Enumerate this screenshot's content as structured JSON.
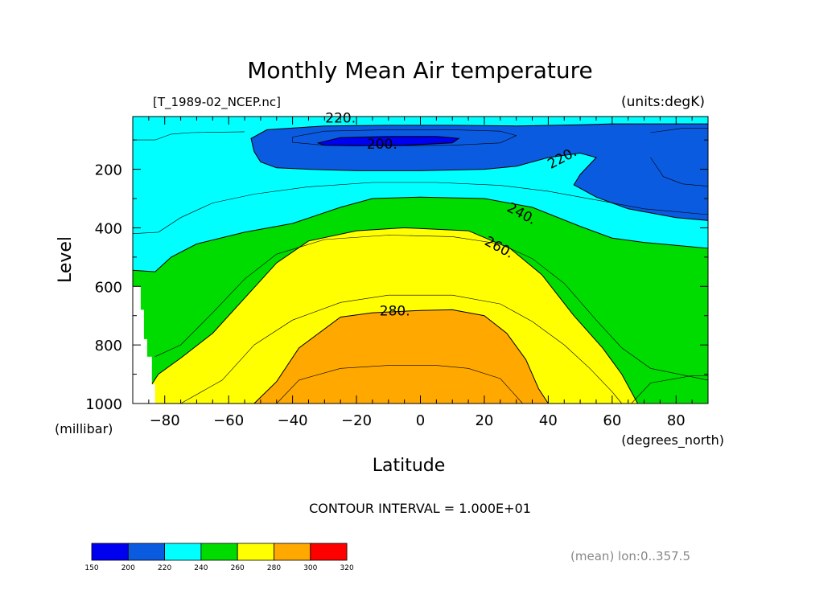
{
  "chart_data": {
    "type": "heatmap",
    "title": "Monthly Mean Air temperature",
    "file_label": "[T_1989-02_NCEP.nc]",
    "units_label": "(units:degK)",
    "xlabel": "Latitude",
    "x_units": "(degrees_north)",
    "ylabel": "Level",
    "y_units": "(millibar)",
    "xlim": [
      -90,
      90
    ],
    "ylim": [
      1000,
      20
    ],
    "y_reversed": true,
    "x_ticks": [
      {
        "value": -80,
        "label": "−80"
      },
      {
        "value": -60,
        "label": "−60"
      },
      {
        "value": -40,
        "label": "−40"
      },
      {
        "value": -20,
        "label": "−20"
      },
      {
        "value": 0,
        "label": "0"
      },
      {
        "value": 20,
        "label": "20"
      },
      {
        "value": 40,
        "label": "40"
      },
      {
        "value": 60,
        "label": "60"
      },
      {
        "value": 80,
        "label": "80"
      }
    ],
    "y_ticks": [
      {
        "value": 200,
        "label": "200"
      },
      {
        "value": 400,
        "label": "400"
      },
      {
        "value": 600,
        "label": "600"
      },
      {
        "value": 800,
        "label": "800"
      },
      {
        "value": 1000,
        "label": "1000"
      }
    ],
    "contour_interval_text": "CONTOUR INTERVAL = 1.000E+01",
    "footnote": "(mean) lon:0..357.5",
    "contour_labels": [
      {
        "text": "220.",
        "lat": -25,
        "level": 40
      },
      {
        "text": "200.",
        "lat": -12,
        "level": 130
      },
      {
        "text": "220.",
        "lat": 45,
        "level": 175
      },
      {
        "text": "240.",
        "lat": 31,
        "level": 365
      },
      {
        "text": "260.",
        "lat": 24,
        "level": 480
      },
      {
        "text": "280.",
        "lat": -8,
        "level": 700
      }
    ],
    "bands": [
      {
        "range": [
          150,
          200
        ],
        "color": "#0000f0"
      },
      {
        "range": [
          200,
          220
        ],
        "color": "#0b5be0"
      },
      {
        "range": [
          220,
          240
        ],
        "color": "#00ffff"
      },
      {
        "range": [
          240,
          260
        ],
        "color": "#00dc00"
      },
      {
        "range": [
          260,
          280
        ],
        "color": "#ffff00"
      },
      {
        "range": [
          280,
          300
        ],
        "color": "#ffa800"
      },
      {
        "range": [
          300,
          320
        ],
        "color": "#ff0000"
      }
    ],
    "colorbar_labels": [
      "150",
      "200",
      "220",
      "240",
      "260",
      "280",
      "300",
      "320"
    ],
    "regions": [
      {
        "band": "220-240",
        "outline": "full"
      },
      {
        "band": "240-260",
        "outline": [
          [
            -90,
            545
          ],
          [
            -83,
            550
          ],
          [
            -78,
            500
          ],
          [
            -70,
            455
          ],
          [
            -55,
            415
          ],
          [
            -40,
            385
          ],
          [
            -25,
            330
          ],
          [
            -15,
            300
          ],
          [
            0,
            295
          ],
          [
            20,
            300
          ],
          [
            35,
            330
          ],
          [
            50,
            395
          ],
          [
            60,
            435
          ],
          [
            70,
            450
          ],
          [
            80,
            460
          ],
          [
            90,
            470
          ],
          [
            90,
            1000
          ],
          [
            -90,
            1000
          ]
        ]
      },
      {
        "band": "260-280",
        "outline": [
          [
            -90,
            1000
          ],
          [
            -88,
            1000
          ],
          [
            -85,
            950
          ],
          [
            -82,
            900
          ],
          [
            -75,
            845
          ],
          [
            -65,
            760
          ],
          [
            -55,
            640
          ],
          [
            -45,
            520
          ],
          [
            -35,
            445
          ],
          [
            -20,
            410
          ],
          [
            -5,
            400
          ],
          [
            15,
            410
          ],
          [
            28,
            470
          ],
          [
            38,
            560
          ],
          [
            48,
            700
          ],
          [
            57,
            810
          ],
          [
            63,
            900
          ],
          [
            68,
            1000
          ]
        ]
      },
      {
        "band": "280-300",
        "outline": [
          [
            -52,
            1000
          ],
          [
            -45,
            925
          ],
          [
            -38,
            810
          ],
          [
            -25,
            705
          ],
          [
            -15,
            690
          ],
          [
            0,
            682
          ],
          [
            10,
            680
          ],
          [
            20,
            700
          ],
          [
            27,
            760
          ],
          [
            33,
            850
          ],
          [
            37,
            950
          ],
          [
            40,
            1000
          ]
        ]
      },
      {
        "band": "200-220",
        "outline": [
          [
            -52,
            140
          ],
          [
            -53,
            95
          ],
          [
            -48,
            65
          ],
          [
            -30,
            52
          ],
          [
            -10,
            50
          ],
          [
            10,
            50
          ],
          [
            30,
            52
          ],
          [
            50,
            48
          ],
          [
            60,
            45
          ],
          [
            75,
            45
          ],
          [
            90,
            45
          ],
          [
            90,
            375
          ],
          [
            80,
            365
          ],
          [
            65,
            335
          ],
          [
            55,
            295
          ],
          [
            48,
            253
          ],
          [
            50,
            218
          ],
          [
            55,
            160
          ],
          [
            50,
            145
          ],
          [
            40,
            160
          ],
          [
            30,
            190
          ],
          [
            20,
            200
          ],
          [
            0,
            205
          ],
          [
            -20,
            205
          ],
          [
            -35,
            200
          ],
          [
            -45,
            195
          ],
          [
            -50,
            175
          ]
        ]
      },
      {
        "band": "150-200",
        "outline": [
          [
            -32,
            110
          ],
          [
            -25,
            92
          ],
          [
            -10,
            88
          ],
          [
            5,
            88
          ],
          [
            12,
            95
          ],
          [
            10,
            110
          ],
          [
            -5,
            118
          ],
          [
            -20,
            120
          ],
          [
            -30,
            118
          ]
        ]
      },
      {
        "band": "missing",
        "outline": [
          [
            -90,
            600
          ],
          [
            -87.5,
            600
          ],
          [
            -87.5,
            680
          ],
          [
            -86.5,
            680
          ],
          [
            -86.5,
            780
          ],
          [
            -85.5,
            780
          ],
          [
            -85.5,
            840
          ],
          [
            -84,
            840
          ],
          [
            -84,
            935
          ],
          [
            -83,
            935
          ],
          [
            -83,
            1000
          ],
          [
            -90,
            1000
          ]
        ]
      }
    ],
    "contour_lines": [
      [
        [
          -90,
          100
        ],
        [
          -83,
          100
        ],
        [
          -78,
          80
        ],
        [
          -72,
          75
        ],
        [
          -55,
          72
        ]
      ],
      [
        [
          -90,
          420
        ],
        [
          -82,
          415
        ],
        [
          -75,
          365
        ],
        [
          -65,
          315
        ],
        [
          -52,
          285
        ],
        [
          -35,
          260
        ],
        [
          -15,
          245
        ],
        [
          5,
          245
        ],
        [
          25,
          255
        ],
        [
          40,
          275
        ],
        [
          55,
          305
        ],
        [
          70,
          335
        ],
        [
          90,
          355
        ]
      ],
      [
        [
          -83,
          840
        ],
        [
          -75,
          800
        ],
        [
          -65,
          690
        ],
        [
          -55,
          575
        ],
        [
          -45,
          490
        ],
        [
          -30,
          440
        ],
        [
          -10,
          425
        ],
        [
          10,
          430
        ],
        [
          25,
          455
        ],
        [
          35,
          505
        ],
        [
          45,
          590
        ],
        [
          55,
          715
        ],
        [
          63,
          810
        ],
        [
          72,
          880
        ],
        [
          90,
          920
        ]
      ],
      [
        [
          -75,
          1000
        ],
        [
          -62,
          920
        ],
        [
          -52,
          800
        ],
        [
          -40,
          715
        ],
        [
          -25,
          655
        ],
        [
          -10,
          630
        ],
        [
          10,
          630
        ],
        [
          25,
          660
        ],
        [
          35,
          720
        ],
        [
          45,
          800
        ],
        [
          53,
          880
        ],
        [
          60,
          960
        ],
        [
          63,
          1000
        ]
      ],
      [
        [
          -45,
          1000
        ],
        [
          -38,
          920
        ],
        [
          -25,
          880
        ],
        [
          -10,
          870
        ],
        [
          5,
          870
        ],
        [
          15,
          880
        ],
        [
          25,
          915
        ],
        [
          32,
          1000
        ]
      ],
      [
        [
          -40,
          90
        ],
        [
          -30,
          70
        ],
        [
          -10,
          65
        ],
        [
          10,
          65
        ],
        [
          25,
          70
        ],
        [
          30,
          85
        ],
        [
          25,
          110
        ],
        [
          10,
          118
        ],
        [
          -10,
          120
        ],
        [
          -30,
          118
        ],
        [
          -40,
          108
        ],
        [
          -40,
          90
        ]
      ],
      [
        [
          66,
          1000
        ],
        [
          72,
          930
        ],
        [
          85,
          905
        ],
        [
          90,
          905
        ]
      ],
      [
        [
          72,
          75
        ],
        [
          82,
          60
        ],
        [
          90,
          60
        ]
      ],
      [
        [
          72,
          160
        ],
        [
          76,
          225
        ],
        [
          82,
          250
        ],
        [
          90,
          258
        ]
      ]
    ]
  }
}
